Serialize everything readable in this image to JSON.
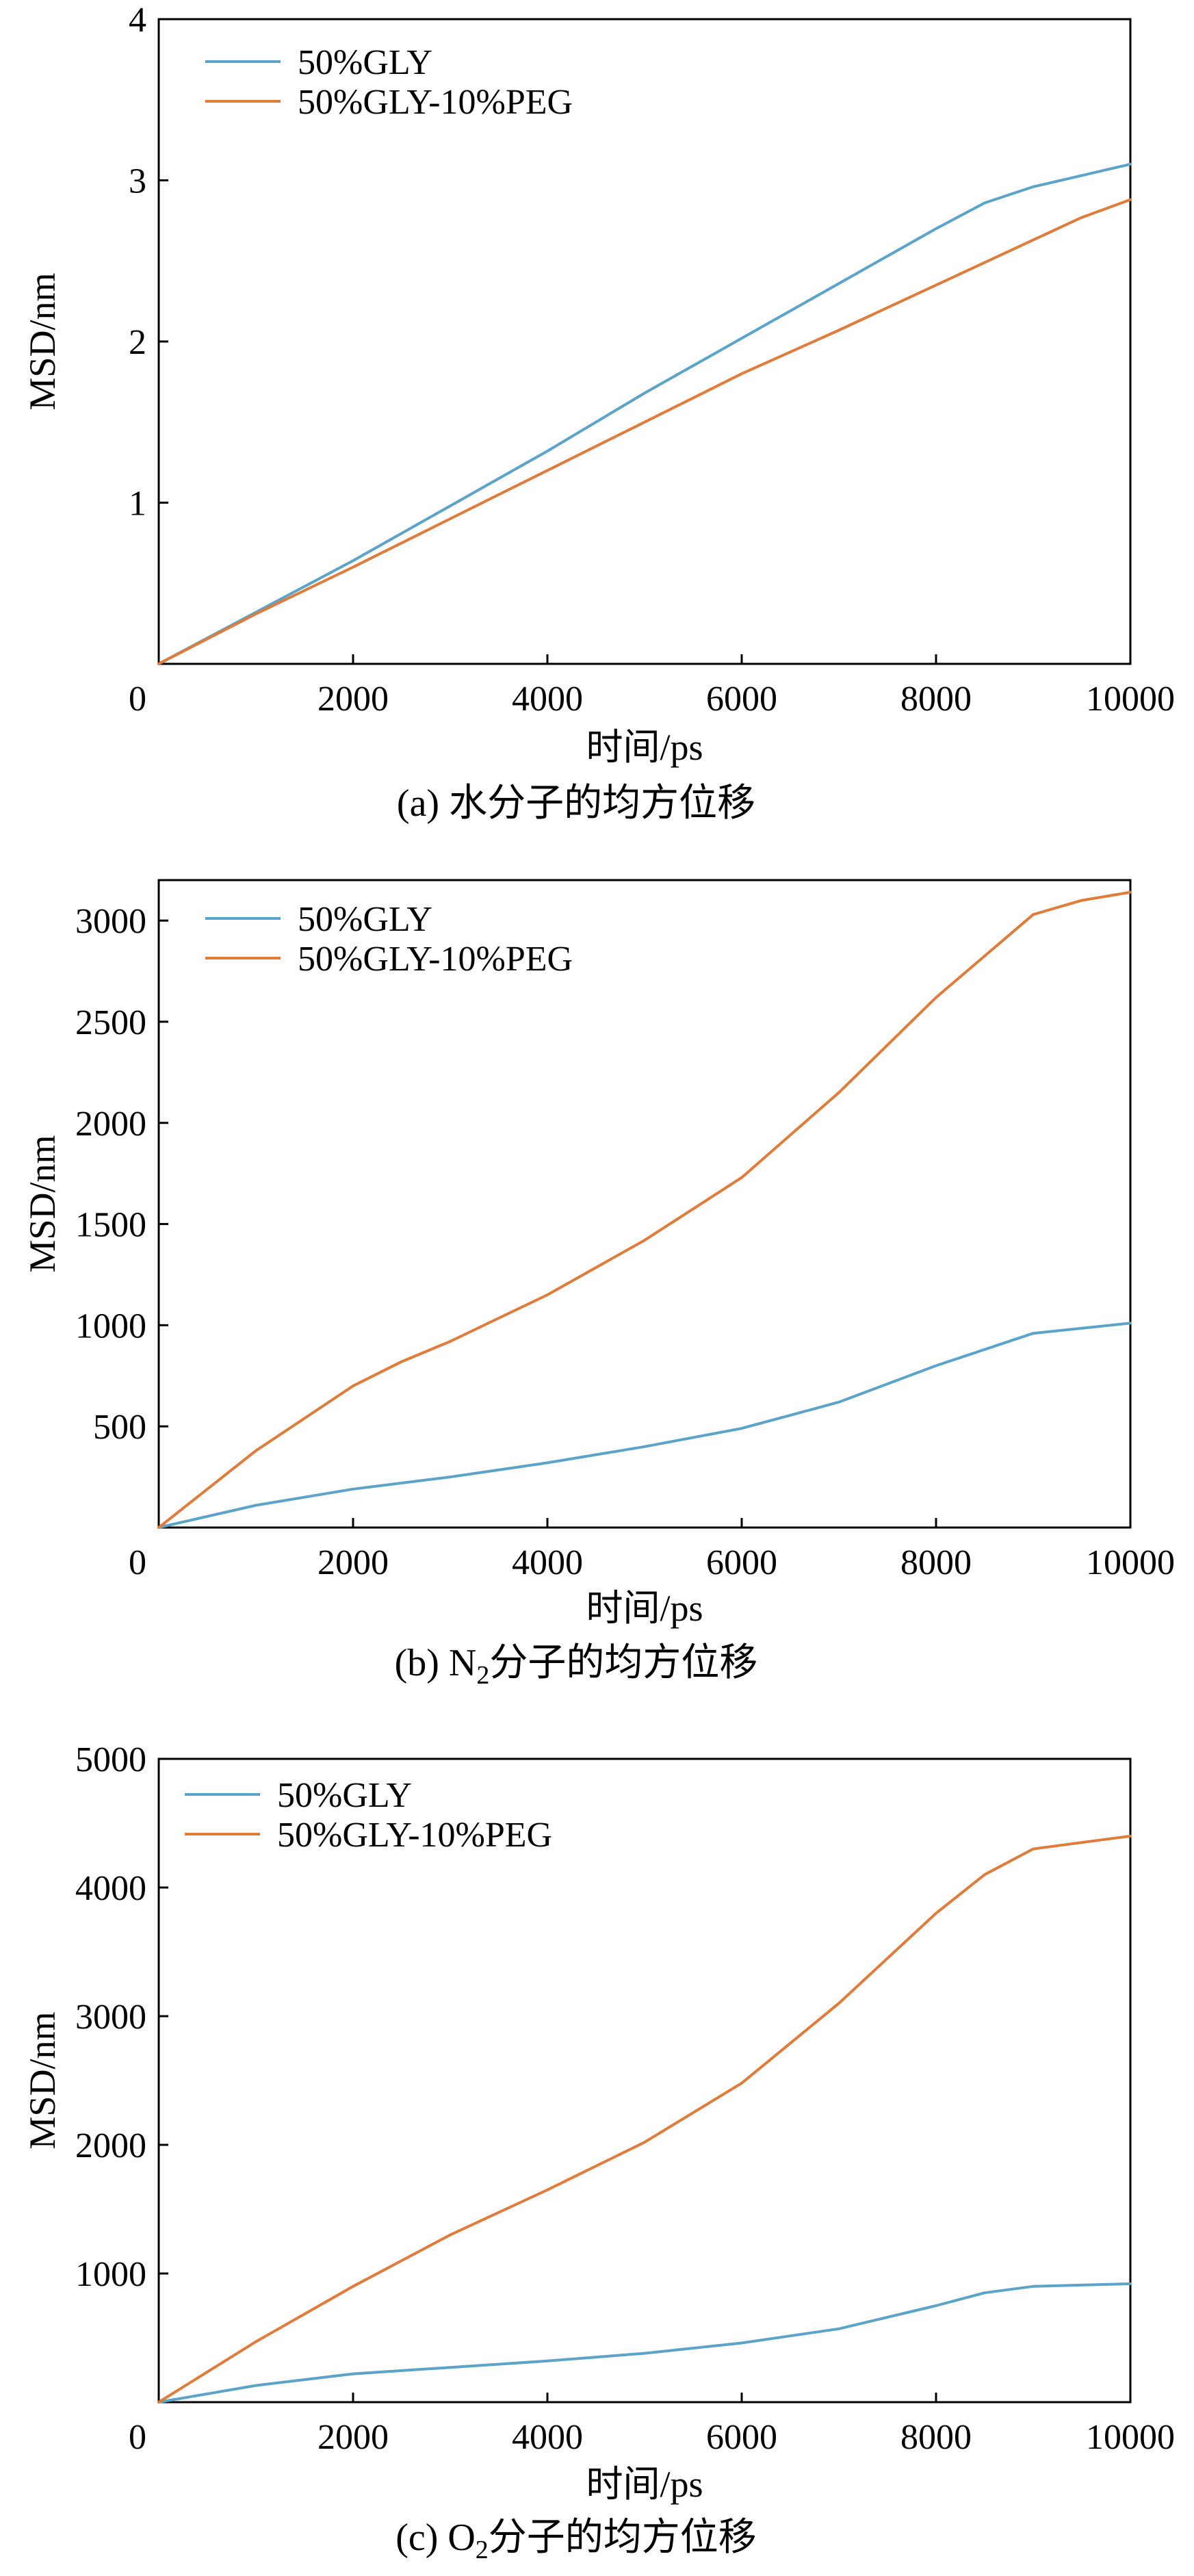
{
  "colors": {
    "series_1": "#5ba3c9",
    "series_2": "#e07b3a"
  },
  "chart_data": [
    {
      "type": "line",
      "xlabel": "时间/ps",
      "ylabel": "MSD/nm",
      "caption": {
        "prefix": "(a) ",
        "chem": "",
        "chem_sub": "",
        "text": "水分子的均方位移"
      },
      "x_ticks": [
        0,
        2000,
        4000,
        6000,
        8000,
        10000
      ],
      "y_ticks": [
        1,
        2,
        3,
        4
      ],
      "xlim": [
        0,
        10000
      ],
      "ylim": [
        0,
        4
      ],
      "grid": false,
      "legend_position": "top-left",
      "series": [
        {
          "name": "50%GLY",
          "x": [
            0,
            1000,
            2000,
            3000,
            4000,
            5000,
            6000,
            7000,
            8000,
            8500,
            9000,
            9500,
            10000
          ],
          "y": [
            0,
            0.32,
            0.64,
            0.98,
            1.32,
            1.68,
            2.02,
            2.36,
            2.7,
            2.86,
            2.96,
            3.03,
            3.1
          ]
        },
        {
          "name": "50%GLY-10%PEG",
          "x": [
            0,
            1000,
            2000,
            3000,
            4000,
            5000,
            6000,
            7000,
            8000,
            9000,
            9500,
            10000
          ],
          "y": [
            0,
            0.31,
            0.6,
            0.9,
            1.2,
            1.5,
            1.8,
            2.07,
            2.35,
            2.63,
            2.77,
            2.88
          ]
        }
      ]
    },
    {
      "type": "line",
      "xlabel": "时间/ps",
      "ylabel": "MSD/nm",
      "caption": {
        "prefix": "(b) ",
        "chem": "N",
        "chem_sub": "2",
        "text": "分子的均方位移"
      },
      "x_ticks": [
        0,
        2000,
        4000,
        6000,
        8000,
        10000
      ],
      "y_ticks": [
        500,
        1000,
        1500,
        2000,
        2500,
        3000
      ],
      "xlim": [
        0,
        10000
      ],
      "ylim": [
        0,
        3200
      ],
      "grid": false,
      "legend_position": "top-left",
      "series": [
        {
          "name": "50%GLY",
          "x": [
            0,
            1000,
            2000,
            3000,
            4000,
            5000,
            6000,
            7000,
            8000,
            9000,
            10000
          ],
          "y": [
            0,
            110,
            190,
            250,
            320,
            400,
            490,
            620,
            800,
            960,
            1010
          ]
        },
        {
          "name": "50%GLY-10%PEG",
          "x": [
            0,
            1000,
            2000,
            2500,
            3000,
            4000,
            5000,
            6000,
            7000,
            8000,
            9000,
            9500,
            10000
          ],
          "y": [
            0,
            380,
            700,
            820,
            920,
            1150,
            1420,
            1730,
            2150,
            2620,
            3030,
            3100,
            3140
          ]
        }
      ]
    },
    {
      "type": "line",
      "xlabel": "时间/ps",
      "ylabel": "MSD/nm",
      "caption": {
        "prefix": "(c) ",
        "chem": "O",
        "chem_sub": "2",
        "text": "分子的均方位移"
      },
      "x_ticks": [
        0,
        2000,
        4000,
        6000,
        8000,
        10000
      ],
      "y_ticks": [
        1000,
        2000,
        3000,
        4000,
        5000
      ],
      "xlim": [
        0,
        10000
      ],
      "ylim": [
        0,
        5000
      ],
      "grid": false,
      "legend_position": "top-left",
      "series": [
        {
          "name": "50%GLY",
          "x": [
            0,
            1000,
            2000,
            3000,
            4000,
            5000,
            6000,
            7000,
            8000,
            8500,
            9000,
            10000
          ],
          "y": [
            0,
            130,
            220,
            270,
            320,
            380,
            460,
            570,
            750,
            850,
            900,
            920
          ]
        },
        {
          "name": "50%GLY-10%PEG",
          "x": [
            0,
            1000,
            2000,
            3000,
            4000,
            5000,
            6000,
            7000,
            8000,
            8500,
            9000,
            9500,
            10000
          ],
          "y": [
            0,
            470,
            900,
            1300,
            1650,
            2020,
            2480,
            3100,
            3800,
            4100,
            4300,
            4350,
            4400
          ]
        }
      ]
    }
  ]
}
